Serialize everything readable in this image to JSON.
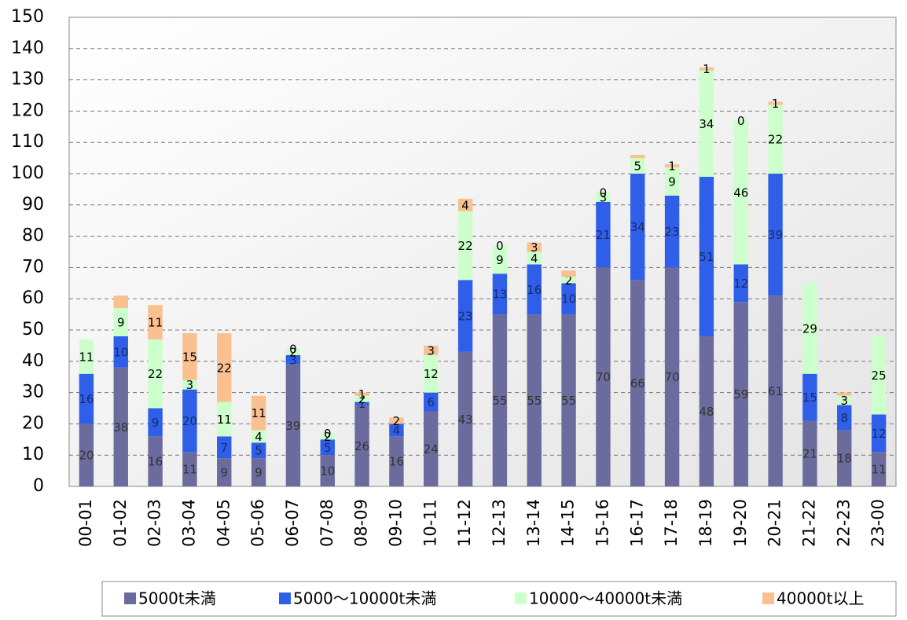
{
  "chart_data": {
    "type": "stacked-bar",
    "categories": [
      "00-01",
      "01-02",
      "02-03",
      "03-04",
      "04-05",
      "05-06",
      "06-07",
      "07-08",
      "08-09",
      "09-10",
      "10-11",
      "11-12",
      "12-13",
      "13-14",
      "14-15",
      "15-16",
      "16-17",
      "17-18",
      "18-19",
      "19-20",
      "20-21",
      "21-22",
      "22-23",
      "23-00"
    ],
    "series": [
      {
        "name": "5000t未満",
        "color": "#6b6b9e",
        "label_color": "#333333",
        "values": [
          20,
          38,
          16,
          11,
          9,
          9,
          39,
          10,
          26,
          16,
          24,
          43,
          55,
          55,
          55,
          70,
          66,
          70,
          48,
          59,
          61,
          21,
          18,
          11
        ],
        "value_labels": [
          "20",
          "38",
          "16",
          "11",
          "9",
          "9",
          "39",
          "10",
          "26",
          "16",
          "24",
          "43",
          "55",
          "55",
          "55",
          "70",
          "66",
          "70",
          "48",
          "59",
          "61",
          "21",
          "18",
          "11"
        ]
      },
      {
        "name": "5000〜10000t未満",
        "color": "#2f5fe8",
        "label_color": "#1a2a6a",
        "values": [
          16,
          10,
          9,
          20,
          7,
          5,
          3,
          5,
          1,
          4,
          6,
          23,
          13,
          16,
          10,
          21,
          34,
          23,
          51,
          12,
          39,
          15,
          8,
          12
        ],
        "value_labels": [
          "16",
          "10",
          "9",
          "20",
          "7",
          "5",
          "3",
          "5",
          "1",
          "4",
          "6",
          "23",
          "13",
          "16",
          "10",
          "21",
          "34",
          "23",
          "51",
          "12",
          "39",
          "15",
          "8",
          "12"
        ]
      },
      {
        "name": "10000〜40000t未満",
        "color": "#ccffcc",
        "label_color": "#000000",
        "values": [
          11,
          9,
          22,
          3,
          11,
          4,
          2,
          2,
          2,
          null,
          12,
          22,
          9,
          4,
          2,
          3,
          5,
          9,
          34,
          46,
          22,
          29,
          3,
          25
        ],
        "value_labels": [
          "11",
          "9",
          "22",
          "3",
          "11",
          "4",
          "2",
          "2",
          "2",
          null,
          "12",
          "22",
          "9",
          "4",
          "2",
          "3",
          "5",
          "9",
          "34",
          "46",
          "22",
          "29",
          "3",
          "25"
        ]
      },
      {
        "name": "40000t以上",
        "color": "#fac090",
        "label_color": "#000000",
        "values": [
          null,
          4,
          11,
          15,
          22,
          11,
          0,
          0,
          1,
          2,
          3,
          4,
          0,
          3,
          2,
          0,
          1,
          1,
          1,
          0,
          1,
          null,
          1,
          null
        ],
        "value_labels": [
          null,
          null,
          "11",
          "15",
          "22",
          "11",
          "0",
          "0",
          "1",
          "2",
          "3",
          "4",
          "0",
          "3",
          null,
          "0",
          null,
          "1",
          "1",
          "0",
          "1",
          null,
          null,
          null
        ]
      }
    ],
    "ylim": [
      0,
      150
    ],
    "yticks": [
      0,
      10,
      20,
      30,
      40,
      50,
      60,
      70,
      80,
      90,
      100,
      110,
      120,
      130,
      140,
      150
    ],
    "grid": true
  }
}
